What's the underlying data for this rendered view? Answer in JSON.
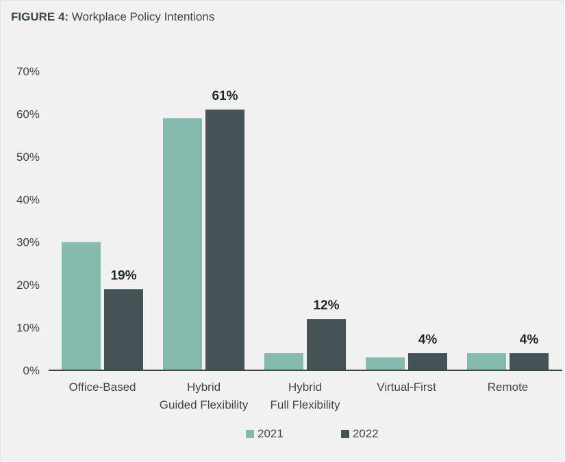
{
  "title": {
    "label": "FIGURE 4:",
    "text": "Workplace Policy Intentions"
  },
  "colors": {
    "series_2021": "#84bbad",
    "series_2022": "#465356",
    "baseline": "#3d4647",
    "text": "#3d4647"
  },
  "chart_data": {
    "type": "bar",
    "title": "Workplace Policy Intentions",
    "xlabel": "",
    "ylabel": "",
    "ylim": [
      0,
      70
    ],
    "yticks": [
      0,
      10,
      20,
      30,
      40,
      50,
      60,
      70
    ],
    "ytick_labels": [
      "0%",
      "10%",
      "20%",
      "30%",
      "40%",
      "50%",
      "60%",
      "70%"
    ],
    "grid": false,
    "legend_position": "bottom-center",
    "categories": [
      [
        "Office-Based"
      ],
      [
        "Hybrid",
        "Guided Flexibility"
      ],
      [
        "Hybrid",
        "Full Flexibility"
      ],
      [
        "Virtual-First"
      ],
      [
        "Remote"
      ]
    ],
    "series": [
      {
        "name": "2021",
        "values": [
          30,
          59,
          4,
          3,
          4
        ],
        "data_labels": [
          null,
          null,
          null,
          null,
          null
        ]
      },
      {
        "name": "2022",
        "values": [
          19,
          61,
          12,
          4,
          4
        ],
        "data_labels": [
          "19%",
          "61%",
          "12%",
          "4%",
          "4%"
        ]
      }
    ]
  }
}
